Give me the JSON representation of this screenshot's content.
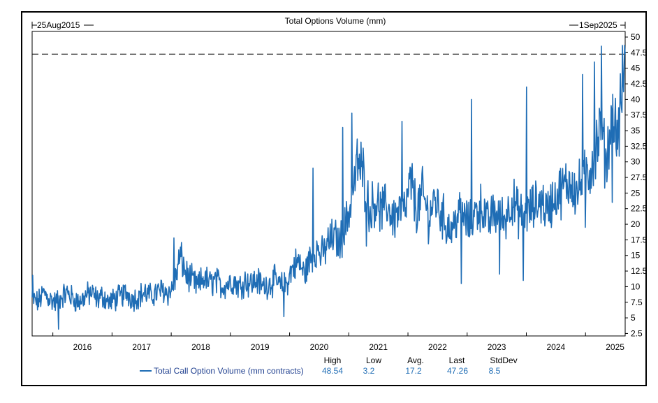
{
  "chart_data": {
    "type": "line",
    "title": "Total Options Volume (mm)",
    "start_label": "25Aug2015",
    "end_label": "1Sep2025",
    "ylim": [
      2.5,
      50
    ],
    "yticks": [
      "50",
      "47.5",
      "45",
      "42.5",
      "40",
      "37.5",
      "35",
      "32.5",
      "30",
      "27.5",
      "25",
      "22.5",
      "20",
      "17.5",
      "15",
      "12.5",
      "10",
      "7.5",
      "5",
      "2.5"
    ],
    "xticks": [
      "2016",
      "2017",
      "2018",
      "2019",
      "2020",
      "2021",
      "2022",
      "2023",
      "2024",
      "2025"
    ],
    "reference_line": 47.26,
    "series": [
      {
        "name": "Total Call Option Volume (mm contracts)",
        "color": "#1f6db5",
        "x": [
          2015.65,
          2015.75,
          2015.85,
          2015.95,
          2016.05,
          2016.15,
          2016.25,
          2016.35,
          2016.45,
          2016.55,
          2016.65,
          2016.75,
          2016.85,
          2016.95,
          2017.05,
          2017.15,
          2017.25,
          2017.35,
          2017.45,
          2017.55,
          2017.65,
          2017.75,
          2017.85,
          2017.95,
          2018.05,
          2018.15,
          2018.25,
          2018.35,
          2018.45,
          2018.55,
          2018.65,
          2018.75,
          2018.85,
          2018.95,
          2019.05,
          2019.15,
          2019.25,
          2019.35,
          2019.45,
          2019.55,
          2019.65,
          2019.75,
          2019.85,
          2019.95,
          2020.05,
          2020.15,
          2020.25,
          2020.35,
          2020.45,
          2020.55,
          2020.65,
          2020.75,
          2020.85,
          2020.95,
          2021.05,
          2021.15,
          2021.25,
          2021.35,
          2021.45,
          2021.55,
          2021.65,
          2021.75,
          2021.85,
          2021.95,
          2022.05,
          2022.15,
          2022.25,
          2022.35,
          2022.45,
          2022.55,
          2022.65,
          2022.75,
          2022.85,
          2022.95,
          2023.05,
          2023.15,
          2023.25,
          2023.35,
          2023.45,
          2023.55,
          2023.65,
          2023.75,
          2023.85,
          2023.95,
          2024.05,
          2024.15,
          2024.25,
          2024.35,
          2024.45,
          2024.55,
          2024.65,
          2024.75,
          2024.85,
          2024.95,
          2025.05,
          2025.15,
          2025.25,
          2025.35,
          2025.45,
          2025.55,
          2025.67
        ],
        "values": [
          8,
          7.5,
          9,
          8,
          7.5,
          8.5,
          9,
          8,
          7.5,
          8.5,
          9,
          8,
          8.5,
          7.5,
          8,
          8.5,
          9,
          8,
          8.5,
          9,
          8.5,
          9,
          9.5,
          9,
          10,
          15,
          12,
          11,
          10,
          11.5,
          10.5,
          11,
          10,
          10.5,
          11,
          10,
          11,
          10.5,
          11,
          10,
          10.5,
          11,
          10,
          10.5,
          13,
          14,
          12,
          14.5,
          16,
          15,
          17,
          18,
          17,
          20,
          24,
          30,
          28,
          22,
          24,
          22,
          23,
          21,
          22,
          22,
          27,
          22,
          25,
          21,
          24,
          22,
          20,
          19,
          22,
          21,
          20,
          22,
          23,
          20,
          22,
          21,
          21,
          24,
          22,
          21,
          22,
          23,
          24,
          22,
          24,
          25,
          26,
          27,
          25,
          27,
          28,
          31,
          35,
          30,
          37,
          34,
          47.26
        ],
        "noise": 1.6,
        "spikes": [
          {
            "x": 2015.66,
            "y": 11.8
          },
          {
            "x": 2016.1,
            "y": 3.2
          },
          {
            "x": 2018.05,
            "y": 17.8
          },
          {
            "x": 2019.9,
            "y": 5.2
          },
          {
            "x": 2020.4,
            "y": 29
          },
          {
            "x": 2020.9,
            "y": 35.5
          },
          {
            "x": 2021.05,
            "y": 37.8
          },
          {
            "x": 2021.3,
            "y": 16.5
          },
          {
            "x": 2021.9,
            "y": 36.5
          },
          {
            "x": 2022.9,
            "y": 10.5
          },
          {
            "x": 2023.07,
            "y": 40
          },
          {
            "x": 2023.55,
            "y": 12
          },
          {
            "x": 2023.95,
            "y": 11
          },
          {
            "x": 2024.0,
            "y": 42
          },
          {
            "x": 2024.95,
            "y": 44
          },
          {
            "x": 2025.15,
            "y": 46
          },
          {
            "x": 2025.27,
            "y": 48.54
          },
          {
            "x": 2025.0,
            "y": 19.5
          },
          {
            "x": 2025.45,
            "y": 23.5
          }
        ]
      }
    ],
    "stats": {
      "headers": [
        "High",
        "Low",
        "Avg.",
        "Last",
        "StdDev"
      ],
      "values": [
        "48.54",
        "3.2",
        "17.2",
        "47.26",
        "8.5"
      ]
    }
  }
}
